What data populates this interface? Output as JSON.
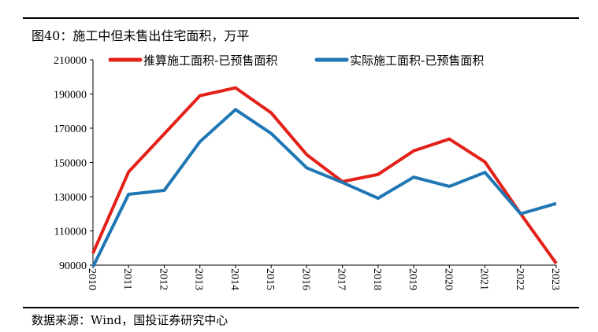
{
  "chart_data": {
    "type": "line",
    "title": "图40：施工中但未售出住宅面积，万平",
    "source": "数据来源：Wind，国投证券研究中心",
    "x": [
      "2010",
      "2011",
      "2012",
      "2013",
      "2014",
      "2015",
      "2016",
      "2017",
      "2018",
      "2019",
      "2020",
      "2021",
      "2022",
      "2023"
    ],
    "ylim": [
      90000,
      210000
    ],
    "yticks": [
      90000,
      110000,
      130000,
      150000,
      170000,
      190000,
      210000
    ],
    "grid": false,
    "legend_position": "top",
    "series": [
      {
        "name": "推算施工面积-已预售面积",
        "color": "#e32119",
        "values": [
          97000,
          144500,
          166700,
          189000,
          193600,
          179000,
          154500,
          138800,
          143000,
          156800,
          163700,
          150300,
          120000,
          91000
        ]
      },
      {
        "name": "实际施工面积-已预售面积",
        "color": "#1f77b4",
        "values": [
          89000,
          131400,
          133700,
          162100,
          180900,
          167000,
          146800,
          138300,
          129100,
          141400,
          136000,
          144200,
          120000,
          126000
        ]
      }
    ]
  }
}
